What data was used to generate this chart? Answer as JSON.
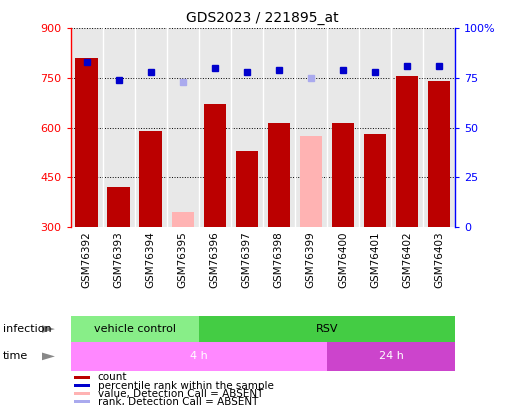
{
  "title": "GDS2023 / 221895_at",
  "samples": [
    "GSM76392",
    "GSM76393",
    "GSM76394",
    "GSM76395",
    "GSM76396",
    "GSM76397",
    "GSM76398",
    "GSM76399",
    "GSM76400",
    "GSM76401",
    "GSM76402",
    "GSM76403"
  ],
  "counts": [
    810,
    420,
    590,
    null,
    670,
    530,
    615,
    null,
    615,
    580,
    755,
    740
  ],
  "absent_counts": [
    null,
    null,
    null,
    345,
    null,
    null,
    null,
    575,
    null,
    null,
    null,
    null
  ],
  "ranks": [
    83,
    74,
    78,
    null,
    80,
    78,
    79,
    null,
    79,
    78,
    81,
    81
  ],
  "absent_ranks": [
    null,
    null,
    null,
    73,
    null,
    null,
    null,
    75,
    null,
    null,
    null,
    null
  ],
  "bar_color_present": "#bb0000",
  "bar_color_absent": "#ffb3b3",
  "dot_color_present": "#0000cc",
  "dot_color_absent": "#aaaaee",
  "ylim_left": [
    300,
    900
  ],
  "ylim_right": [
    0,
    100
  ],
  "yticks_left": [
    300,
    450,
    600,
    750,
    900
  ],
  "yticks_right": [
    0,
    25,
    50,
    75,
    100
  ],
  "ytick_right_labels": [
    "0",
    "25",
    "50",
    "75",
    "100%"
  ],
  "infection_groups": [
    {
      "label": "vehicle control",
      "start": 0,
      "end": 3,
      "color": "#88ee88"
    },
    {
      "label": "RSV",
      "start": 4,
      "end": 11,
      "color": "#44cc44"
    }
  ],
  "time_groups": [
    {
      "label": "4 h",
      "start": 0,
      "end": 7,
      "color": "#ff99ff"
    },
    {
      "label": "24 h",
      "start": 8,
      "end": 11,
      "color": "#cc44cc"
    }
  ],
  "legend_items": [
    {
      "color": "#bb0000",
      "label": "count"
    },
    {
      "color": "#0000cc",
      "label": "percentile rank within the sample"
    },
    {
      "color": "#ffb3b3",
      "label": "value, Detection Call = ABSENT"
    },
    {
      "color": "#aaaaee",
      "label": "rank, Detection Call = ABSENT"
    }
  ],
  "infection_label": "infection",
  "time_label": "time",
  "plot_bg_color": "#dddddd",
  "bar_bg_color": "#e8e8e8"
}
